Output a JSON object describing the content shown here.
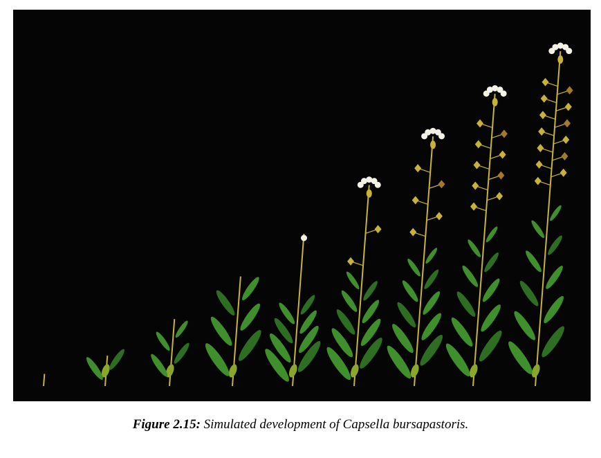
{
  "figure": {
    "label": "Figure 2.15:",
    "text": "Simulated development of Capsella bursapastoris.",
    "background_color": "#050505",
    "stem_color": "#c9b43a",
    "leaf_color": "#3f8f2c",
    "leaf_dark_color": "#2e6e22",
    "leaf_light_color": "#8aa62b",
    "flower_color": "#f4f1e6",
    "pod_color": "#c8b23a",
    "pod_dark_color": "#a37a2a",
    "stages": [
      {
        "height": 0.04,
        "leaves": 0,
        "flowers": 0,
        "pods": 0
      },
      {
        "height": 0.1,
        "leaves": 2,
        "flowers": 0,
        "pods": 0
      },
      {
        "height": 0.22,
        "leaves": 4,
        "flowers": 0,
        "pods": 0
      },
      {
        "height": 0.36,
        "leaves": 6,
        "flowers": 0,
        "pods": 0
      },
      {
        "height": 0.5,
        "leaves": 8,
        "flowers": 1,
        "pods": 0
      },
      {
        "height": 0.66,
        "leaves": 9,
        "flowers": 5,
        "pods": 2
      },
      {
        "height": 0.82,
        "leaves": 10,
        "flowers": 5,
        "pods": 5
      },
      {
        "height": 0.96,
        "leaves": 10,
        "flowers": 5,
        "pods": 9
      },
      {
        "height": 1.1,
        "leaves": 10,
        "flowers": 5,
        "pods": 13
      }
    ]
  }
}
